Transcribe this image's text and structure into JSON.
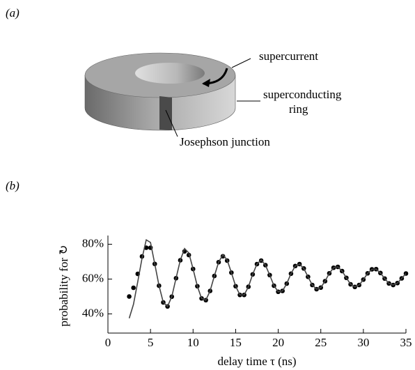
{
  "panel_a": {
    "label": "(a)",
    "labels": {
      "supercurrent": "supercurrent",
      "ring_line1": "superconducting",
      "ring_line2": "ring",
      "junction": "Josephson junction"
    }
  },
  "panel_b": {
    "label": "(b)"
  },
  "chart_data": {
    "type": "scatter-line",
    "x_label": "delay time τ (ns)",
    "y_label": "probability for ↻",
    "xlim": [
      0,
      35
    ],
    "xticks": [
      0,
      5,
      10,
      15,
      20,
      25,
      30,
      35
    ],
    "ylim": [
      29,
      85
    ],
    "yticks": [
      {
        "value": 40,
        "label": "40%"
      },
      {
        "value": 60,
        "label": "60%"
      },
      {
        "value": 80,
        "label": "80%"
      }
    ],
    "x": [
      2.5,
      3,
      3.5,
      4,
      4.5,
      5,
      5.5,
      6,
      6.5,
      7,
      7.5,
      8,
      8.5,
      9,
      9.5,
      10,
      10.5,
      11,
      11.5,
      12,
      12.5,
      13,
      13.5,
      14,
      14.5,
      15,
      15.5,
      16,
      16.5,
      17,
      17.5,
      18,
      18.5,
      19,
      19.5,
      20,
      20.5,
      21,
      21.5,
      22,
      22.5,
      23,
      23.5,
      24,
      24.5,
      25,
      25.5,
      26,
      26.5,
      27,
      27.5,
      28,
      28.5,
      29,
      29.5,
      30,
      30.5,
      31,
      31.5,
      32,
      32.5,
      33,
      33.5,
      34,
      34.5,
      35
    ],
    "series": [
      {
        "kind": "points",
        "color": "#000000",
        "values": [
          50,
          55,
          63,
          73,
          78,
          78.0,
          68.7,
          56.2,
          46.6,
          44.3,
          49.9,
          60.5,
          70.8,
          75.9,
          73.8,
          65.8,
          55.9,
          48.9,
          47.9,
          53.2,
          61.8,
          69.7,
          73.1,
          70.6,
          63.7,
          55.9,
          50.9,
          50.9,
          55.6,
          62.7,
          68.6,
          70.6,
          68.0,
          62.3,
          56.2,
          52.7,
          53.2,
          57.4,
          63.1,
          67.5,
          68.6,
          66.1,
          61.3,
          56.6,
          54.2,
          55.1,
          58.8,
          63.3,
          66.5,
          67.0,
          64.6,
          60.7,
          57.0,
          55.5,
          56.6,
          59.7,
          63.3,
          65.6,
          65.7,
          63.5,
          60.3,
          57.5,
          56.6,
          57.7,
          60.4,
          63.2
        ]
      },
      {
        "kind": "line",
        "color": "#444444",
        "values": [
          37.5,
          45.5,
          58.4,
          71.8,
          82.5,
          81.0,
          68.7,
          56.2,
          46.6,
          44.3,
          49.9,
          60.5,
          70.8,
          77.5,
          75.0,
          65.8,
          55.9,
          48.9,
          47.9,
          53.2,
          61.8,
          69.7,
          74.0,
          71.0,
          63.7,
          55.9,
          50.9,
          50.9,
          55.6,
          62.7,
          68.6,
          71.0,
          68.0,
          62.3,
          56.2,
          52.7,
          53.2,
          57.4,
          63.1,
          67.5,
          68.6,
          66.1,
          61.3,
          56.6,
          54.2,
          55.1,
          58.8,
          63.3,
          66.5,
          67.0,
          64.6,
          60.7,
          57.0,
          55.5,
          56.6,
          59.7,
          63.3,
          65.6,
          65.7,
          63.5,
          60.3,
          57.5,
          56.6,
          57.7,
          60.4,
          63.2
        ]
      }
    ]
  }
}
